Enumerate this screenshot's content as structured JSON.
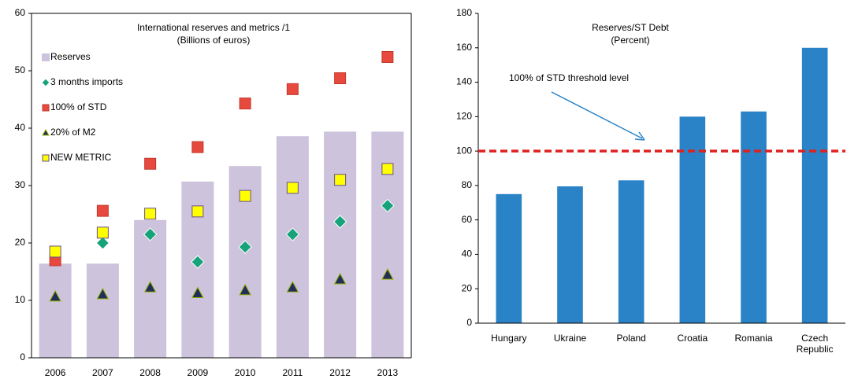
{
  "chart_data": [
    {
      "type": "bar",
      "title": "International reserves and metrics /1",
      "subtitle": "(Billions of euros)",
      "categories": [
        "2006",
        "2007",
        "2008",
        "2009",
        "2010",
        "2011",
        "2012",
        "2013"
      ],
      "series": [
        {
          "name": "Reserves",
          "type": "bar",
          "color": "#cdc3dc",
          "values": [
            16.4,
            16.4,
            24,
            30.7,
            33.4,
            38.6,
            39.4,
            39.4
          ]
        },
        {
          "name": "3 months imports",
          "type": "scatter",
          "marker": "diamond",
          "color": "#16a37a",
          "values": [
            null,
            20,
            21.5,
            16.7,
            19.3,
            21.5,
            23.7,
            26.5
          ]
        },
        {
          "name": "100% of STD",
          "type": "scatter",
          "marker": "square",
          "color": "#e8493f",
          "values": [
            17,
            25.6,
            33.8,
            36.7,
            44.3,
            46.8,
            48.7,
            52.4
          ]
        },
        {
          "name": "20% of M2",
          "type": "scatter",
          "marker": "triangle",
          "color": "#1f2f5a",
          "values": [
            10.7,
            11.1,
            12.3,
            11.3,
            11.8,
            12.3,
            13.7,
            14.5
          ]
        },
        {
          "name": "NEW METRIC",
          "type": "scatter",
          "marker": "square",
          "color": "#ffff00",
          "values": [
            18.5,
            21.8,
            25.1,
            25.5,
            28.2,
            29.6,
            31,
            32.9
          ]
        }
      ],
      "ylim": [
        0,
        60
      ],
      "yticks": [
        0,
        10,
        20,
        30,
        40,
        50,
        60
      ],
      "legend": "top-left"
    },
    {
      "type": "bar",
      "title": "Reserves/ST Debt",
      "subtitle": "(Percent)",
      "categories": [
        "Hungary",
        "Ukraine",
        "Poland",
        "Croatia",
        "Romania",
        "Czech Republic"
      ],
      "series": [
        {
          "name": null,
          "type": "bar",
          "color": "#2a83c6",
          "values": [
            75,
            79.5,
            83,
            120,
            123,
            160
          ]
        }
      ],
      "threshold": {
        "value": 100,
        "label": "100% of STD threshold level",
        "color": "#e02020"
      },
      "ylim": [
        0,
        180
      ],
      "yticks": [
        0,
        20,
        40,
        60,
        80,
        100,
        120,
        140,
        160,
        180
      ]
    }
  ]
}
